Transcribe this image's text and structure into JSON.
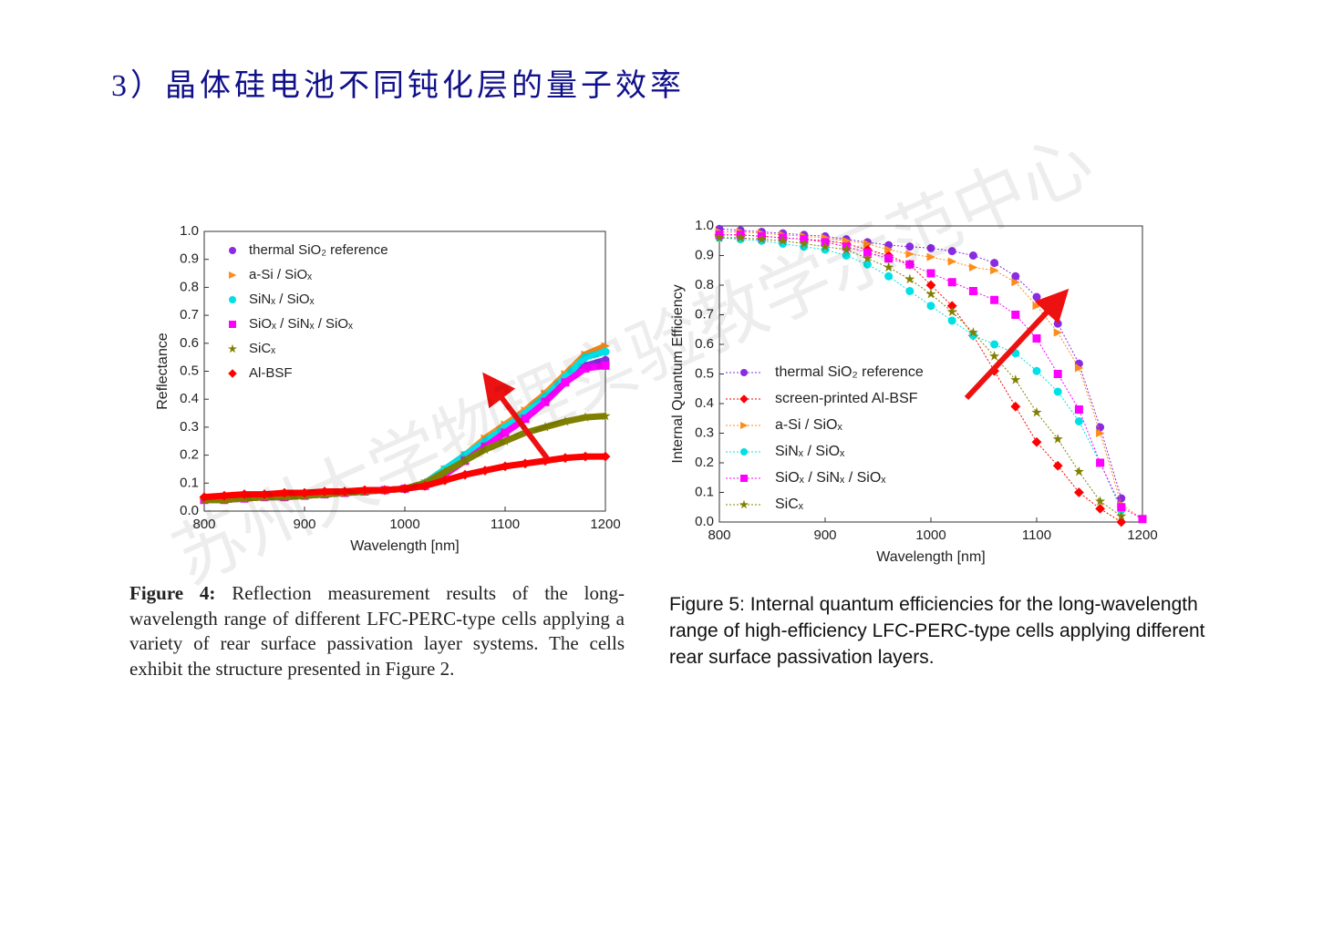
{
  "title": "3）晶体硅电池不同钝化层的量子效率",
  "watermark": "苏州大学物理实验教学示范中心",
  "captions": [
    {
      "lead": "Figure 4:",
      "text": "Reflection measurement results of the long-wavelength range of different LFC-PERC-type cells applying a variety of rear surface passivation layer systems. The cells exhibit the structure presented in Figure 2."
    },
    {
      "text": "Figure 5: Internal quantum efficiencies for the long-wavelength  range of high-efficiency LFC-PERC-type cells applying different rear surface passivation layers."
    }
  ],
  "chart_data": [
    {
      "type": "scatter",
      "x_label": "Wavelength [nm]",
      "y_label": "Reflectance",
      "x": [
        800,
        820,
        840,
        860,
        880,
        900,
        920,
        940,
        960,
        980,
        1000,
        1020,
        1040,
        1060,
        1080,
        1100,
        1120,
        1140,
        1160,
        1180,
        1200
      ],
      "xlim": [
        800,
        1200
      ],
      "xticks": [
        800,
        900,
        1000,
        1100,
        1200
      ],
      "ylim": [
        0,
        1
      ],
      "yticks": [
        {
          "value": 0,
          "label": "0.0"
        },
        {
          "value": 0.1,
          "label": "0.1"
        },
        {
          "value": 0.2,
          "label": "0.2"
        },
        {
          "value": 0.3,
          "label": "0.3"
        },
        {
          "value": 0.4,
          "label": "0.4"
        },
        {
          "value": 0.5,
          "label": "0.5"
        },
        {
          "value": 0.6,
          "label": "0.6"
        },
        {
          "value": 0.7,
          "label": "0.7"
        },
        {
          "value": 0.8,
          "label": "0.8"
        },
        {
          "value": 0.9,
          "label": "0.9"
        },
        {
          "value": 1,
          "label": "1.0"
        }
      ],
      "series": [
        {
          "name": "thermal SiO₂ reference",
          "color": "#8a2be2",
          "marker": "circle",
          "values": [
            0.04,
            0.04,
            0.045,
            0.05,
            0.05,
            0.055,
            0.06,
            0.065,
            0.07,
            0.075,
            0.08,
            0.1,
            0.15,
            0.2,
            0.25,
            0.3,
            0.35,
            0.41,
            0.47,
            0.52,
            0.54
          ]
        },
        {
          "name": "a-Si  / SiOₓ",
          "color": "#ff8c1a",
          "marker": "triangle",
          "values": [
            0.04,
            0.04,
            0.045,
            0.05,
            0.05,
            0.055,
            0.06,
            0.065,
            0.07,
            0.075,
            0.08,
            0.1,
            0.15,
            0.2,
            0.26,
            0.31,
            0.36,
            0.42,
            0.49,
            0.56,
            0.59
          ]
        },
        {
          "name": "SiNₓ / SiOₓ",
          "color": "#00e0e6",
          "marker": "circle",
          "values": [
            0.04,
            0.04,
            0.045,
            0.05,
            0.05,
            0.055,
            0.06,
            0.065,
            0.07,
            0.075,
            0.08,
            0.1,
            0.15,
            0.2,
            0.25,
            0.3,
            0.35,
            0.41,
            0.48,
            0.55,
            0.57
          ]
        },
        {
          "name": "SiOₓ / SiNₓ / SiOₓ",
          "color": "#ff00ff",
          "marker": "square",
          "values": [
            0.04,
            0.04,
            0.045,
            0.05,
            0.05,
            0.055,
            0.06,
            0.065,
            0.07,
            0.075,
            0.08,
            0.09,
            0.13,
            0.18,
            0.23,
            0.28,
            0.33,
            0.39,
            0.46,
            0.51,
            0.52
          ]
        },
        {
          "name": "SiCₓ",
          "color": "#808000",
          "marker": "star",
          "values": [
            0.04,
            0.04,
            0.045,
            0.05,
            0.05,
            0.055,
            0.06,
            0.065,
            0.07,
            0.075,
            0.08,
            0.1,
            0.14,
            0.18,
            0.22,
            0.25,
            0.28,
            0.3,
            0.32,
            0.335,
            0.34
          ]
        },
        {
          "name": "Al-BSF",
          "color": "#ff0000",
          "marker": "diamond",
          "values": [
            0.05,
            0.055,
            0.06,
            0.06,
            0.065,
            0.065,
            0.07,
            0.07,
            0.075,
            0.075,
            0.08,
            0.09,
            0.11,
            0.13,
            0.145,
            0.16,
            0.17,
            0.18,
            0.19,
            0.195,
            0.195
          ]
        }
      ]
    },
    {
      "type": "line",
      "x_label": "Wavelength [nm]",
      "y_label": "Internal Quantum Efficiency",
      "x": [
        800,
        820,
        840,
        860,
        880,
        900,
        920,
        940,
        960,
        980,
        1000,
        1020,
        1040,
        1060,
        1080,
        1100,
        1120,
        1140,
        1160,
        1180,
        1200
      ],
      "xlim": [
        800,
        1200
      ],
      "xticks": [
        800,
        900,
        1000,
        1100,
        1200
      ],
      "ylim": [
        0,
        1
      ],
      "yticks": [
        {
          "value": 0,
          "label": "0.0"
        },
        {
          "value": 0.1,
          "label": "0.1"
        },
        {
          "value": 0.2,
          "label": "0.2"
        },
        {
          "value": 0.3,
          "label": "0.3"
        },
        {
          "value": 0.4,
          "label": "0.4"
        },
        {
          "value": 0.5,
          "label": "0.5"
        },
        {
          "value": 0.6,
          "label": "0.6"
        },
        {
          "value": 0.7,
          "label": "0.7"
        },
        {
          "value": 0.8,
          "label": "0.8"
        },
        {
          "value": 0.9,
          "label": "0.9"
        },
        {
          "value": 1,
          "label": "1.0"
        }
      ],
      "series": [
        {
          "name": "thermal SiO₂ reference",
          "color": "#8a2be2",
          "marker": "circle",
          "values": [
            0.99,
            0.985,
            0.98,
            0.975,
            0.97,
            0.965,
            0.955,
            0.945,
            0.935,
            0.93,
            0.925,
            0.915,
            0.9,
            0.875,
            0.83,
            0.76,
            0.67,
            0.535,
            0.32,
            0.08,
            null
          ]
        },
        {
          "name": "screen-printed Al-BSF",
          "color": "#ff0000",
          "marker": "diamond",
          "values": [
            0.97,
            0.97,
            0.965,
            0.96,
            0.955,
            0.95,
            0.94,
            0.92,
            0.9,
            0.87,
            0.8,
            0.73,
            0.63,
            0.51,
            0.39,
            0.27,
            0.19,
            0.1,
            0.045,
            0.0,
            null
          ]
        },
        {
          "name": "a-Si  / SiOₓ",
          "color": "#ff8c1a",
          "marker": "triangle",
          "values": [
            0.98,
            0.98,
            0.975,
            0.97,
            0.965,
            0.96,
            0.95,
            0.94,
            0.92,
            0.905,
            0.895,
            0.88,
            0.86,
            0.85,
            0.81,
            0.73,
            0.64,
            0.52,
            0.3,
            0.06,
            0.01
          ]
        },
        {
          "name": "SiNₓ / SiOₓ",
          "color": "#00e0e6",
          "marker": "circle",
          "values": [
            0.96,
            0.955,
            0.95,
            0.94,
            0.93,
            0.92,
            0.9,
            0.87,
            0.83,
            0.78,
            0.73,
            0.68,
            0.63,
            0.6,
            0.57,
            0.51,
            0.44,
            0.34,
            0.2,
            0.04,
            null
          ]
        },
        {
          "name": "SiOₓ / SiNₓ / SiOₓ",
          "color": "#ff00ff",
          "marker": "square",
          "values": [
            0.97,
            0.97,
            0.965,
            0.96,
            0.955,
            0.945,
            0.93,
            0.91,
            0.89,
            0.87,
            0.84,
            0.81,
            0.78,
            0.75,
            0.7,
            0.62,
            0.5,
            0.38,
            0.2,
            0.05,
            0.01
          ]
        },
        {
          "name": "SiCₓ",
          "color": "#808000",
          "marker": "star",
          "values": [
            0.96,
            0.96,
            0.955,
            0.95,
            0.94,
            0.93,
            0.92,
            0.89,
            0.86,
            0.82,
            0.77,
            0.71,
            0.64,
            0.56,
            0.48,
            0.37,
            0.28,
            0.17,
            0.07,
            0.02,
            null
          ]
        }
      ]
    }
  ]
}
